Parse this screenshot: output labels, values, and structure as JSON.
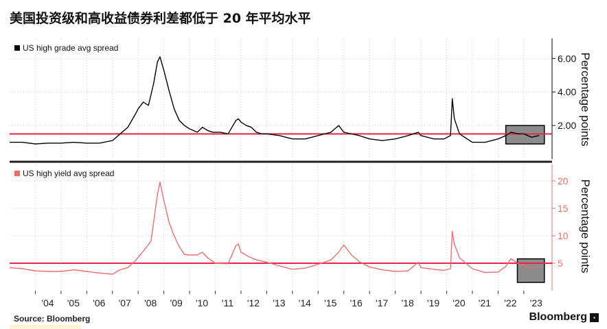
{
  "title": "美国投资级和高收益债券利差都低于 20 年平均水平",
  "source": "Source: Bloomberg",
  "brand": "Bloomberg",
  "brand_icon": "bloomberg-terminal-icon",
  "colors": {
    "hg": "#000000",
    "hy": "#f06c6c",
    "avg_line": "#e8254a",
    "box": "#8c8c8c",
    "grid": "#bdbdbd"
  },
  "chart_data": [
    {
      "type": "line",
      "legend": "US high grade avg spread",
      "ylabel": "Percentage points",
      "ylim": [
        0,
        7.2
      ],
      "yticks": [
        2,
        4,
        6
      ],
      "ytick_labels": [
        "2.00",
        "4.00",
        "6.00"
      ],
      "average": 1.5,
      "highlight": {
        "x": [
          2022.3,
          2023.8
        ],
        "y": [
          0.9,
          2.0
        ]
      },
      "x": [
        2003.0,
        2003.5,
        2004.0,
        2004.5,
        2005.0,
        2005.5,
        2006.0,
        2006.5,
        2007.0,
        2007.3,
        2007.6,
        2007.9,
        2008.0,
        2008.2,
        2008.4,
        2008.6,
        2008.75,
        2008.85,
        2009.0,
        2009.2,
        2009.4,
        2009.6,
        2009.8,
        2010.0,
        2010.3,
        2010.5,
        2010.7,
        2010.9,
        2011.2,
        2011.5,
        2011.8,
        2011.9,
        2012.0,
        2012.2,
        2012.4,
        2012.6,
        2012.8,
        2013.0,
        2013.5,
        2014.0,
        2014.5,
        2015.0,
        2015.5,
        2015.8,
        2016.0,
        2016.3,
        2016.6,
        2017.0,
        2017.5,
        2018.0,
        2018.5,
        2018.9,
        2019.0,
        2019.5,
        2019.9,
        2020.15,
        2020.22,
        2020.3,
        2020.5,
        2020.8,
        2021.0,
        2021.5,
        2022.0,
        2022.3,
        2022.5,
        2022.8,
        2023.0,
        2023.3,
        2023.6
      ],
      "y": [
        1.0,
        1.0,
        0.9,
        0.95,
        0.95,
        1.0,
        0.95,
        0.95,
        1.1,
        1.5,
        1.9,
        2.7,
        3.0,
        3.4,
        3.2,
        4.5,
        5.8,
        6.1,
        5.3,
        4.1,
        3.0,
        2.3,
        2.0,
        1.8,
        1.6,
        1.9,
        1.7,
        1.6,
        1.6,
        1.5,
        2.3,
        2.4,
        2.2,
        2.0,
        1.9,
        1.6,
        1.5,
        1.5,
        1.4,
        1.2,
        1.2,
        1.4,
        1.6,
        2.0,
        1.6,
        1.5,
        1.4,
        1.2,
        1.1,
        1.2,
        1.4,
        1.6,
        1.4,
        1.2,
        1.2,
        1.4,
        3.6,
        2.4,
        1.5,
        1.2,
        1.0,
        1.0,
        1.2,
        1.4,
        1.6,
        1.5,
        1.5,
        1.3,
        1.4
      ]
    },
    {
      "type": "line",
      "legend": "US high yield avg spread",
      "ylabel": "Percentage points",
      "ylim": [
        0,
        23
      ],
      "yticks": [
        5,
        10,
        15,
        20
      ],
      "ytick_labels": [
        "5",
        "10",
        "15",
        "20"
      ],
      "average": 5.0,
      "highlight": {
        "x": [
          2022.75,
          2023.8
        ],
        "y": [
          1.5,
          5.8
        ]
      },
      "x": [
        2003.0,
        2003.5,
        2004.0,
        2004.5,
        2005.0,
        2005.5,
        2006.0,
        2006.5,
        2007.0,
        2007.3,
        2007.6,
        2007.9,
        2008.2,
        2008.5,
        2008.75,
        2008.85,
        2009.0,
        2009.2,
        2009.4,
        2009.6,
        2009.8,
        2010.0,
        2010.3,
        2010.5,
        2010.7,
        2011.0,
        2011.5,
        2011.8,
        2011.9,
        2012.0,
        2012.3,
        2012.6,
        2013.0,
        2013.5,
        2014.0,
        2014.5,
        2015.0,
        2015.5,
        2015.8,
        2016.0,
        2016.3,
        2016.6,
        2017.0,
        2017.5,
        2018.0,
        2018.5,
        2018.9,
        2019.0,
        2019.5,
        2019.9,
        2020.15,
        2020.22,
        2020.3,
        2020.5,
        2020.8,
        2021.0,
        2021.5,
        2022.0,
        2022.3,
        2022.5,
        2022.8,
        2023.0,
        2023.3,
        2023.6
      ],
      "y": [
        4.2,
        4.0,
        3.6,
        3.5,
        3.5,
        3.8,
        3.5,
        3.2,
        3.0,
        3.8,
        4.2,
        5.5,
        7.2,
        9.0,
        17.5,
        19.8,
        16.5,
        12.5,
        10.0,
        8.0,
        6.6,
        6.5,
        6.5,
        7.0,
        6.0,
        5.0,
        4.9,
        8.2,
        8.5,
        7.0,
        6.2,
        5.6,
        5.2,
        4.5,
        3.9,
        4.1,
        4.8,
        5.6,
        7.0,
        8.3,
        6.5,
        5.3,
        4.3,
        3.8,
        3.5,
        3.6,
        5.2,
        4.2,
        3.9,
        3.7,
        4.0,
        10.8,
        8.5,
        6.0,
        4.8,
        4.0,
        3.3,
        3.4,
        4.4,
        5.8,
        4.9,
        4.6,
        4.0,
        4.5
      ]
    }
  ],
  "x_tick_labels": [
    "'04",
    "'05",
    "'06",
    "'07",
    "'08",
    "'09",
    "'10",
    "'11",
    "'12",
    "'13",
    "'14",
    "'15",
    "'16",
    "'17",
    "'18",
    "'19",
    "'20",
    "'21",
    "'22",
    "'23"
  ],
  "x_ticks": [
    2004,
    2005,
    2006,
    2007,
    2008,
    2009,
    2010,
    2011,
    2012,
    2013,
    2014,
    2015,
    2016,
    2017,
    2018,
    2019,
    2020,
    2021,
    2022,
    2023
  ]
}
